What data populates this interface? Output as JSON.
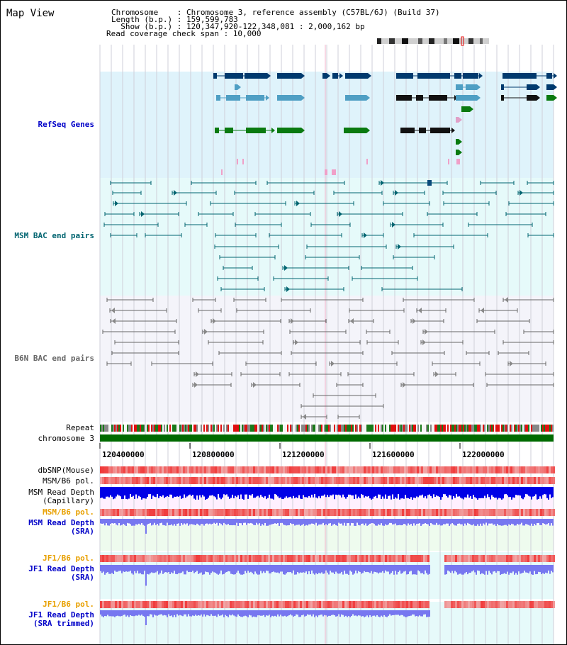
{
  "app": {
    "title": "Map View"
  },
  "header": {
    "chromosome_line": "Chromosome    : Chromosome 3, reference assembly (C57BL/6J) (Build 37)",
    "length_line": "Length (b.p.) : 159,599,783",
    "show_line": "  Show (b.p.) : 120,347,920-122,348,081 : 2,000,162 bp",
    "coverage_line": "Read coverage check span : 10,000"
  },
  "tracks": {
    "refseq_label": "RefSeq Genes",
    "msm_bac_label": "MSM BAC end pairs",
    "b6n_bac_label": "B6N BAC end pairs",
    "repeat_label": "Repeat",
    "chromosome_label": "chromosome 3",
    "dbsnp_label": "dbSNP(Mouse)",
    "msm_b6_pol_label": "MSM/B6 pol.",
    "msm_read_depth_cap_label": "MSM Read Depth\n(Capillary)",
    "msm_b6_pol2_label": "MSM/B6 pol.",
    "msm_read_depth_sra_label": "MSM Read Depth\n(SRA)",
    "jf1_b6_pol_label": "JF1/B6 pol.",
    "jf1_read_depth_sra_label": "JF1 Read Depth\n(SRA)",
    "jf1_b6_pol2_label": "JF1/B6 pol.",
    "jf1_read_depth_trim_label": "JF1 Read Depth\n(SRA trimmed)"
  },
  "axis": {
    "ticks": [
      "120400000",
      "120800000",
      "121200000",
      "121600000",
      "122000000"
    ]
  },
  "colors": {
    "refseq_bg": "#dff3fb",
    "msm_bg": "#e6fafa",
    "b6n_bg": "#f4f4fa",
    "label_blue": "#0000c8",
    "label_teal": "#006470",
    "label_orange": "#e8a000",
    "gene_navy": "#003a6e",
    "gene_mid": "#4f9fc4",
    "gene_green": "#0a7a10",
    "msm_line": "#006470",
    "b6n_line": "#666666",
    "chrom_green": "#006a00",
    "depth_blue": "#0000e6",
    "depth_light": "#7777f0"
  }
}
